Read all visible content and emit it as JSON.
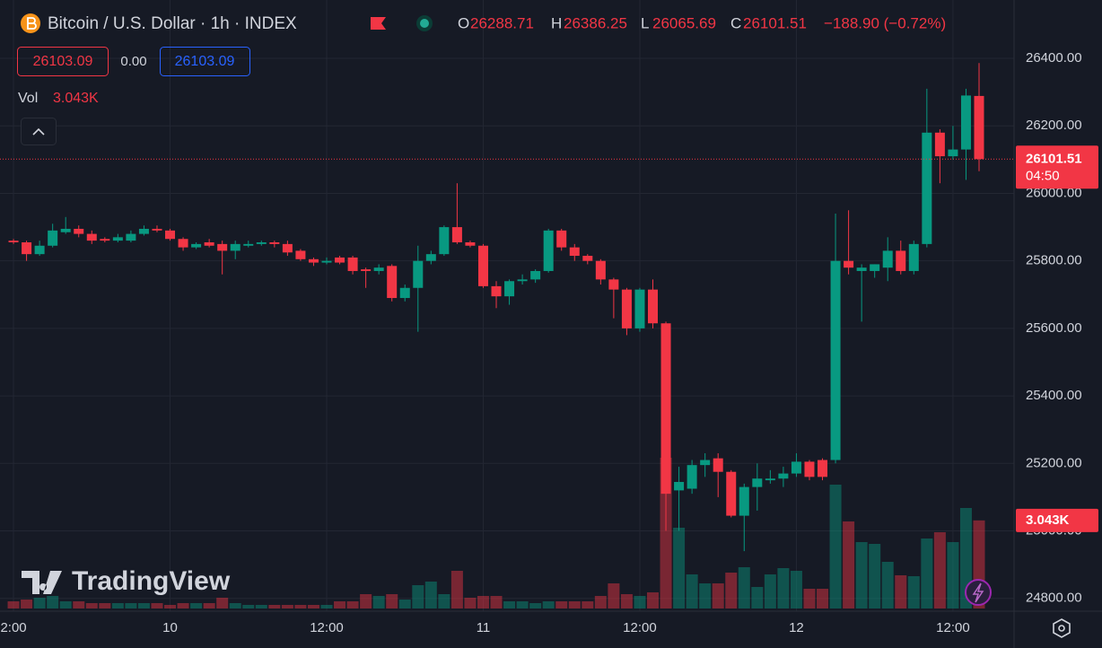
{
  "header": {
    "symbol": "Bitcoin / U.S. Dollar · 1h · INDEX",
    "ohlc_labels": [
      "O",
      "H",
      "L",
      "C"
    ],
    "change": "−188.90 (−0.72%)"
  },
  "toolbar": {
    "bid": "26103.09",
    "spread": "0.00",
    "ask": "26103.09"
  },
  "volume_title": "Vol",
  "countdown": "04:50",
  "logo": "TradingView",
  "chart_data": {
    "type": "candlestick",
    "up_color": "#089981",
    "down_color": "#f23645",
    "categories": [
      "2:00",
      null,
      null,
      null,
      null,
      null,
      null,
      null,
      null,
      null,
      null,
      null,
      "10",
      null,
      null,
      null,
      null,
      null,
      null,
      null,
      null,
      null,
      null,
      null,
      "12:00",
      null,
      null,
      null,
      null,
      null,
      null,
      null,
      null,
      null,
      null,
      null,
      "11",
      null,
      null,
      null,
      null,
      null,
      null,
      null,
      null,
      null,
      null,
      null,
      "12:00",
      null,
      null,
      null,
      null,
      null,
      null,
      null,
      null,
      null,
      null,
      null,
      "12",
      null,
      null,
      null,
      null,
      null,
      null,
      null,
      null,
      null,
      null,
      null,
      "12:00",
      null,
      null
    ],
    "open": [
      25860,
      25855,
      25820,
      25845,
      25885,
      25895,
      25880,
      25865,
      25860,
      25860,
      25880,
      25895,
      25890,
      25865,
      25840,
      25855,
      25850,
      25830,
      25845,
      25850,
      25855,
      25850,
      25830,
      25805,
      25795,
      25810,
      25810,
      25775,
      25770,
      25785,
      25690,
      25720,
      25800,
      25820,
      25900,
      25855,
      25845,
      25725,
      25695,
      25740,
      25745,
      25770,
      25890,
      25840,
      25815,
      25800,
      25745,
      25715,
      25600,
      25715,
      25615,
      25120,
      25125,
      25195,
      25215,
      25175,
      25045,
      25130,
      25150,
      25155,
      25170,
      25205,
      25210,
      25210,
      25800,
      25770,
      25770,
      25780,
      25830,
      25770,
      25850,
      26180,
      26110,
      26130,
      26288.71
    ],
    "high": [
      25865,
      25860,
      25860,
      25910,
      25930,
      25905,
      25890,
      25870,
      25880,
      25890,
      25905,
      25905,
      25895,
      25870,
      25855,
      25865,
      25860,
      25860,
      25860,
      25860,
      25860,
      25860,
      25835,
      25810,
      25810,
      25815,
      25815,
      25780,
      25790,
      25790,
      25730,
      25845,
      25830,
      25905,
      26030,
      25860,
      25850,
      25740,
      25745,
      25760,
      25775,
      25895,
      25895,
      25850,
      25820,
      25805,
      25750,
      25720,
      25720,
      25745,
      25620,
      25190,
      25210,
      25230,
      25230,
      25180,
      25140,
      25200,
      25180,
      25190,
      25230,
      25210,
      25215,
      25940,
      25950,
      25790,
      25790,
      25870,
      25860,
      25860,
      26310,
      26190,
      26200,
      26310,
      26386.25
    ],
    "low": [
      25850,
      25800,
      25815,
      25840,
      25880,
      25870,
      25850,
      25855,
      25855,
      25855,
      25875,
      25885,
      25860,
      25830,
      25835,
      25840,
      25760,
      25805,
      25840,
      25845,
      25840,
      25815,
      25800,
      25785,
      25790,
      25790,
      25760,
      25720,
      25760,
      25680,
      25680,
      25590,
      25790,
      25815,
      25850,
      25840,
      25720,
      25660,
      25670,
      25730,
      25735,
      25765,
      25830,
      25800,
      25790,
      25730,
      25630,
      25580,
      25590,
      25600,
      25000,
      25000,
      25110,
      25160,
      25100,
      25040,
      24940,
      25060,
      25140,
      25130,
      25160,
      25150,
      25150,
      25200,
      25760,
      25620,
      25750,
      25740,
      25760,
      25760,
      25840,
      26030,
      26100,
      26040,
      26065.69
    ],
    "close": [
      25855,
      25820,
      25845,
      25890,
      25895,
      25880,
      25860,
      25860,
      25870,
      25880,
      25895,
      25890,
      25865,
      25840,
      25850,
      25845,
      25830,
      25850,
      25850,
      25855,
      25850,
      25825,
      25805,
      25795,
      25800,
      25795,
      25770,
      25770,
      25780,
      25690,
      25720,
      25800,
      25820,
      25900,
      25855,
      25845,
      25725,
      25695,
      25740,
      25745,
      25770,
      25890,
      25840,
      25815,
      25800,
      25745,
      25715,
      25600,
      25715,
      25615,
      25110,
      25145,
      25195,
      25210,
      25175,
      25045,
      25130,
      25155,
      25155,
      25170,
      25205,
      25160,
      25160,
      25800,
      25780,
      25780,
      25790,
      25830,
      25770,
      25850,
      26180,
      26110,
      26130,
      26290,
      26101.51
    ],
    "volume": [
      248,
      310,
      372,
      434,
      248,
      248,
      186,
      186,
      186,
      186,
      186,
      186,
      124,
      186,
      186,
      186,
      372,
      186,
      124,
      124,
      124,
      124,
      124,
      124,
      124,
      248,
      248,
      496,
      434,
      496,
      310,
      806,
      930,
      496,
      1302,
      372,
      434,
      434,
      248,
      248,
      186,
      248,
      248,
      248,
      248,
      434,
      868,
      496,
      434,
      558,
      5208,
      2790,
      1178,
      868,
      868,
      1240,
      1426,
      744,
      1178,
      1395,
      1302,
      682,
      682,
      4278,
      3007,
      2294,
      2232,
      1612,
      1147,
      1116,
      2418,
      2635,
      2294,
      3472,
      3043
    ],
    "volume_labels": [
      null,
      null,
      null,
      null,
      null,
      null,
      null,
      null,
      null,
      null,
      null,
      null,
      null,
      null,
      null,
      null,
      null,
      null,
      null,
      null,
      null,
      null,
      null,
      null,
      null,
      null,
      null,
      null,
      null,
      null,
      null,
      null,
      null,
      null,
      null,
      null,
      null,
      null,
      null,
      null,
      null,
      null,
      null,
      null,
      null,
      null,
      null,
      null,
      null,
      null,
      null,
      null,
      null,
      null,
      null,
      null,
      null,
      null,
      null,
      null,
      null,
      null,
      null,
      null,
      null,
      null,
      null,
      null,
      null,
      null,
      null,
      null,
      null,
      null,
      "3.043K"
    ],
    "ylim": [
      24770,
      26573
    ],
    "yticks": [
      {
        "value": 24800,
        "label": "24800.00"
      },
      {
        "value": 25000,
        "label": "25000.00"
      },
      {
        "value": 25200,
        "label": "25200.00"
      },
      {
        "value": 25400,
        "label": "25400.00"
      },
      {
        "value": 25600,
        "label": "25600.00"
      },
      {
        "value": 25800,
        "label": "25800.00"
      },
      {
        "value": 26000,
        "label": "26000.00"
      },
      {
        "value": 26200,
        "label": "26200.00"
      },
      {
        "value": 26400,
        "label": "26400.00"
      }
    ],
    "grid": true
  }
}
